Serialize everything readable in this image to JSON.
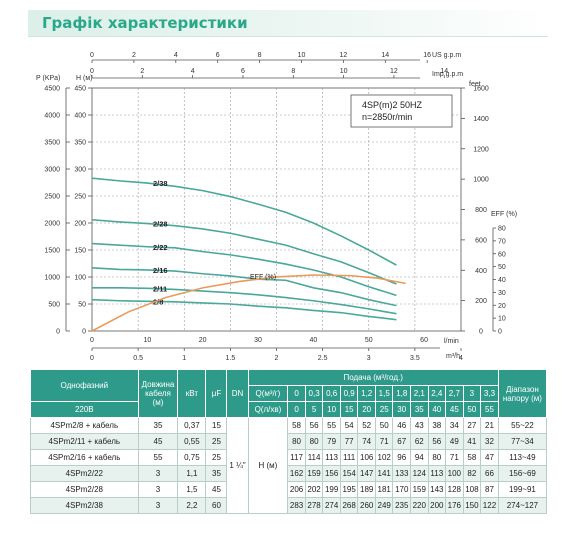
{
  "header": {
    "title": "Графік характеристики"
  },
  "chart_data": {
    "type": "line",
    "annotation_lines": [
      "4SP(m)2  50HZ",
      "n=2850r/min"
    ],
    "axes": {
      "top_us": {
        "label": "US g.p.m",
        "ticks": [
          "0",
          "2",
          "4",
          "6",
          "8",
          "10",
          "12",
          "14",
          "16"
        ],
        "range": [
          0,
          16
        ]
      },
      "top_imp": {
        "label": "Imp g.p.m",
        "ticks": [
          "0",
          "2",
          "4",
          "6",
          "8",
          "10",
          "12",
          "14"
        ],
        "range": [
          0,
          14
        ]
      },
      "left_kpa": {
        "label": "P (KPa)",
        "ticks": [
          "0",
          "500",
          "1000",
          "1500",
          "2000",
          "2500",
          "3000",
          "3500",
          "4000",
          "4500"
        ],
        "range": [
          0,
          4500
        ]
      },
      "left_h": {
        "label": "H (м)",
        "ticks": [
          "0",
          "50",
          "100",
          "150",
          "200",
          "250",
          "300",
          "350",
          "400",
          "450"
        ],
        "range": [
          0,
          450
        ]
      },
      "right_feet": {
        "label": "feet",
        "ticks": [
          "0",
          "200",
          "400",
          "600",
          "800",
          "1000",
          "1200",
          "1400",
          "1600"
        ],
        "range": [
          0,
          1600
        ]
      },
      "right_eff": {
        "label": "EFF (%)",
        "ticks": [
          "0",
          "10",
          "20",
          "30",
          "40",
          "50",
          "60",
          "70",
          "80"
        ],
        "range": [
          0,
          80
        ]
      },
      "bottom_lmin": {
        "label": "l/min",
        "ticks": [
          "0",
          "10",
          "20",
          "30",
          "40",
          "50",
          "60"
        ],
        "range": [
          0,
          60
        ]
      },
      "bottom_m3h": {
        "label": "m³/h",
        "ticks": [
          "0",
          "0.5",
          "1",
          "1.5",
          "2",
          "2.5",
          "3",
          "3.5",
          "4"
        ],
        "range": [
          0,
          4
        ]
      }
    },
    "x_m3h": [
      0,
      0.3,
      0.6,
      0.9,
      1.2,
      1.5,
      1.8,
      2.1,
      2.4,
      2.7,
      3,
      3.3
    ],
    "series": [
      {
        "name": "2/38",
        "values": [
          283,
          278,
          274,
          268,
          260,
          249,
          235,
          220,
          200,
          176,
          150,
          122
        ]
      },
      {
        "name": "2/28",
        "values": [
          206,
          202,
          199,
          195,
          189,
          181,
          170,
          159,
          143,
          128,
          108,
          87
        ]
      },
      {
        "name": "2/22",
        "values": [
          162,
          159,
          156,
          154,
          147,
          141,
          133,
          124,
          113,
          100,
          82,
          66
        ]
      },
      {
        "name": "2/16",
        "values": [
          117,
          114,
          113,
          111,
          106,
          102,
          96,
          94,
          80,
          71,
          58,
          47
        ]
      },
      {
        "name": "2/11",
        "values": [
          80,
          80,
          79,
          77,
          74,
          71,
          67,
          62,
          56,
          49,
          41,
          32
        ]
      },
      {
        "name": "2/8",
        "values": [
          58,
          56,
          55,
          54,
          52,
          50,
          46,
          43,
          38,
          34,
          27,
          21
        ]
      }
    ],
    "efficiency": {
      "name": "EFF (%)",
      "x_m3h": [
        0,
        0.4,
        0.8,
        1.2,
        1.6,
        2.0,
        2.4,
        2.8,
        3.1,
        3.4
      ],
      "values": [
        0,
        15,
        26,
        33.5,
        38.5,
        42,
        43.5,
        43,
        41,
        37
      ]
    },
    "colors": {
      "head_curve": "#4aa89a",
      "efficiency_curve": "#ea9a5a"
    }
  },
  "table": {
    "header": {
      "phase": "Однофазний",
      "voltage": "220В",
      "cable": "Довжина кабеля (м)",
      "kw": "кВт",
      "uf": "μF",
      "dn": "DN",
      "flow_label": "Подача (м³/год.)",
      "q_m3h_label": "Q(м³/г)",
      "q_lmin_label": "Q(л/хв)",
      "range_label": "Діапазон напору (м)",
      "q_m3h": [
        "0",
        "0,3",
        "0,6",
        "0,9",
        "1,2",
        "1,5",
        "1,8",
        "2,1",
        "2,4",
        "2,7",
        "3",
        "3,3"
      ],
      "q_lmin": [
        "0",
        "5",
        "10",
        "15",
        "20",
        "25",
        "30",
        "35",
        "40",
        "45",
        "50",
        "55"
      ]
    },
    "shared": {
      "dn": "1 ¼\"",
      "h": "H (м)"
    },
    "rows": [
      {
        "model": "4SPm2/8 + кабель",
        "cable": "35",
        "kw": "0,37",
        "uf": "15",
        "h": [
          "58",
          "56",
          "55",
          "54",
          "52",
          "50",
          "46",
          "43",
          "38",
          "34",
          "27",
          "21"
        ],
        "range": "55~22"
      },
      {
        "model": "4SPm2/11 + кабель",
        "cable": "45",
        "kw": "0,55",
        "uf": "25",
        "h": [
          "80",
          "80",
          "79",
          "77",
          "74",
          "71",
          "67",
          "62",
          "56",
          "49",
          "41",
          "32"
        ],
        "range": "77~34"
      },
      {
        "model": "4SPm2/16 + кабель",
        "cable": "55",
        "kw": "0,75",
        "uf": "25",
        "h": [
          "117",
          "114",
          "113",
          "111",
          "106",
          "102",
          "96",
          "94",
          "80",
          "71",
          "58",
          "47"
        ],
        "range": "113~49"
      },
      {
        "model": "4SPm2/22",
        "cable": "3",
        "kw": "1,1",
        "uf": "35",
        "h": [
          "162",
          "159",
          "156",
          "154",
          "147",
          "141",
          "133",
          "124",
          "113",
          "100",
          "82",
          "66"
        ],
        "range": "156~69"
      },
      {
        "model": "4SPm2/28",
        "cable": "3",
        "kw": "1,5",
        "uf": "45",
        "h": [
          "206",
          "202",
          "199",
          "195",
          "189",
          "181",
          "170",
          "159",
          "143",
          "128",
          "108",
          "87"
        ],
        "range": "199~91"
      },
      {
        "model": "4SPm2/38",
        "cable": "3",
        "kw": "2,2",
        "uf": "60",
        "h": [
          "283",
          "278",
          "274",
          "268",
          "260",
          "249",
          "235",
          "220",
          "200",
          "176",
          "150",
          "122"
        ],
        "range": "274~127"
      }
    ]
  }
}
